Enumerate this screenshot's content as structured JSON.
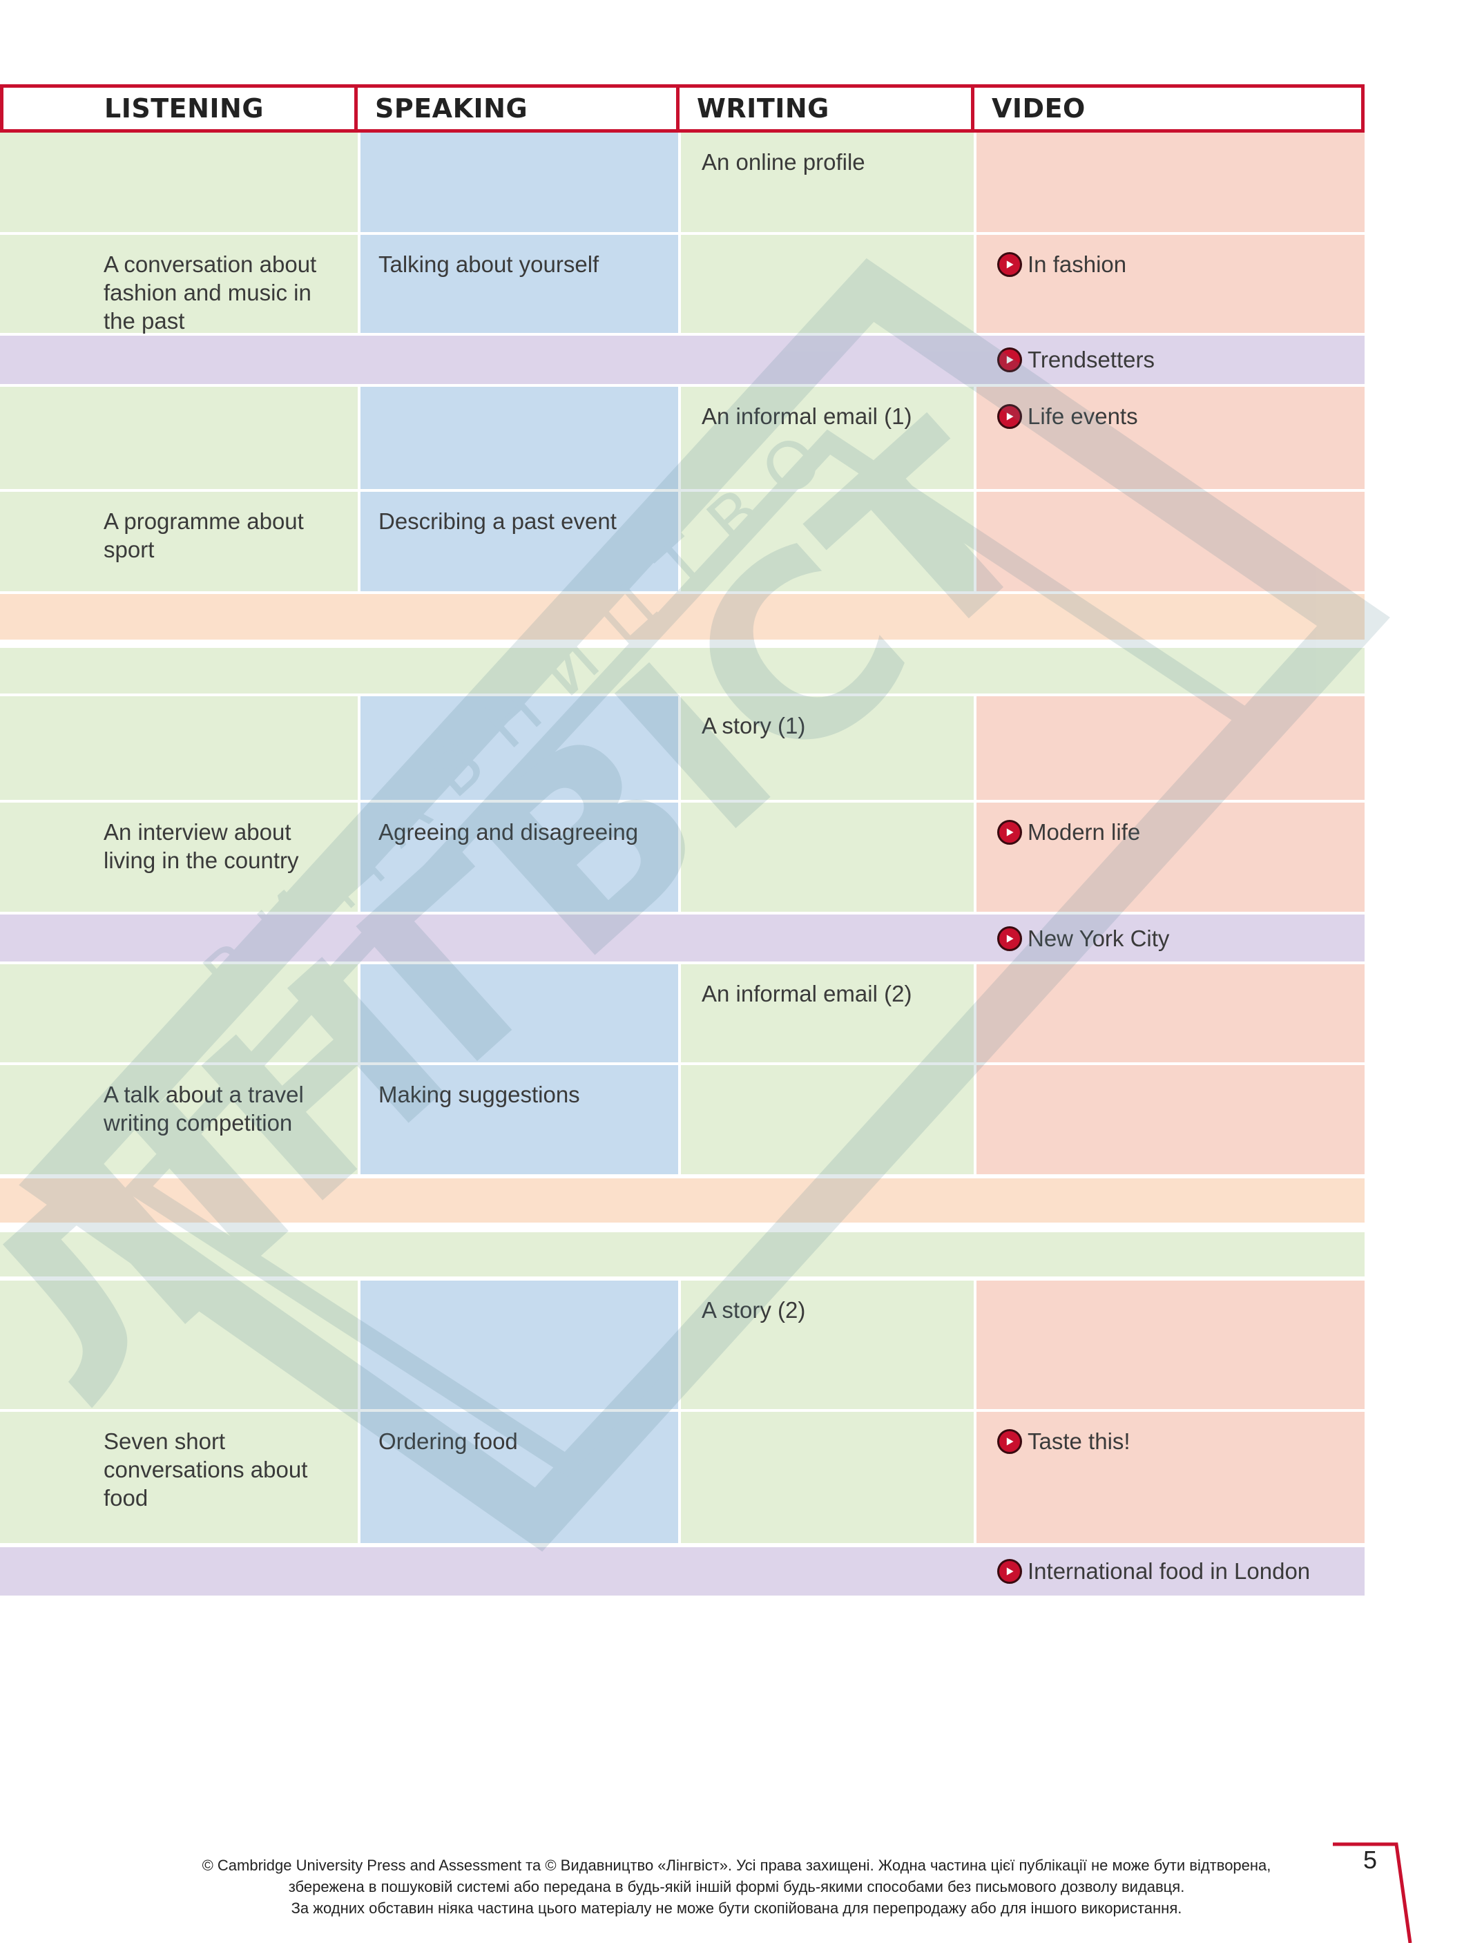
{
  "header": {
    "listening": "LISTENING",
    "speaking": "SPEAKING",
    "writing": "WRITING",
    "video": "VIDEO"
  },
  "rows": [
    {
      "listening": "",
      "speaking": "",
      "writing": "An online profile",
      "video": ""
    },
    {
      "listening": "A conversation about fashion and music in the past",
      "speaking": "Talking about yourself",
      "writing": "",
      "video": "In fashion"
    },
    {
      "video": "Trendsetters"
    },
    {
      "listening": "",
      "speaking": "",
      "writing": "An informal email (1)",
      "video": "Life events"
    },
    {
      "listening": "A programme about sport",
      "speaking": "Describing a past event",
      "writing": "",
      "video": ""
    },
    {
      "listening": "",
      "speaking": "",
      "writing": "A story (1)",
      "video": ""
    },
    {
      "listening": "An interview about living in the country",
      "speaking": "Agreeing and disagreeing",
      "writing": "",
      "video": "Modern life"
    },
    {
      "video": "New York City"
    },
    {
      "listening": "",
      "speaking": "",
      "writing": "An informal email (2)",
      "video": ""
    },
    {
      "listening": "A talk about a travel writing competition",
      "speaking": "Making suggestions",
      "writing": "",
      "video": ""
    },
    {
      "listening": "",
      "speaking": "",
      "writing": "A story (2)",
      "video": ""
    },
    {
      "listening": "Seven short conversations about food",
      "speaking": "Ordering food",
      "writing": "",
      "video": "Taste this!"
    },
    {
      "video": "International food in London"
    }
  ],
  "footer": {
    "line1": "© Cambridge University Press and Assessment та © Видавництво «Лінгвіст». Усі права захищені. Жодна частина цієї публікації не може бути відтворена,",
    "line2": "збережена в пошуковій системі або передана в будь-якій іншій формі будь-якими способами без письмового дозволу видавця.",
    "line3": "За жодних обставин ніяка частина цього матеріалу не може бути скопійована для перепродажу або для іншого використання."
  },
  "page_number": "5",
  "watermark": {
    "text_small": "ВИДАВНИЦТВО",
    "text_large": "ЛІНГВІСТ"
  },
  "colors": {
    "accent_red": "#c8102e",
    "listening_bg": "#e3efd6",
    "speaking_bg": "#c6dbee",
    "writing_bg": "#e3efd6",
    "video_bg": "#f8d6cb",
    "band_purple": "#ddd4ea",
    "band_orange": "#fbe0cb"
  }
}
